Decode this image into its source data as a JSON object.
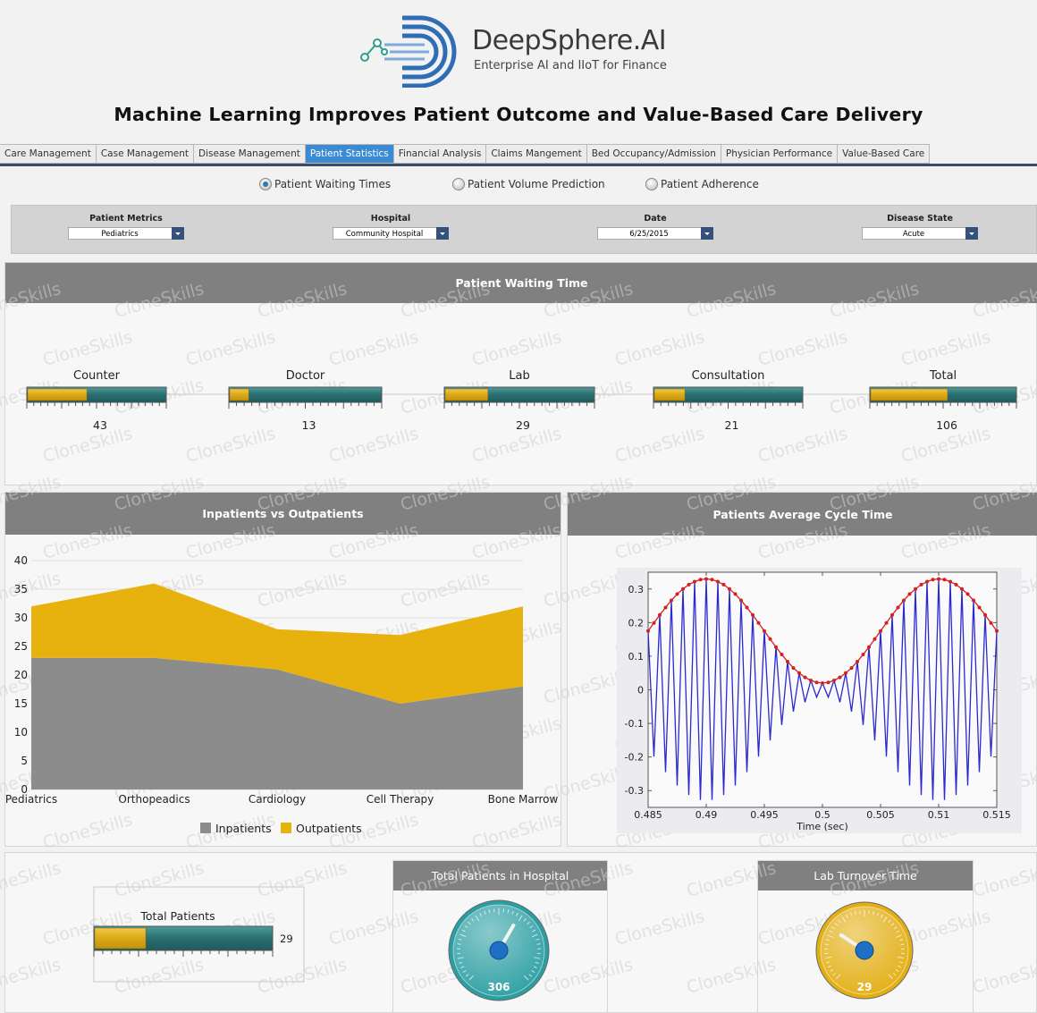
{
  "header": {
    "brand": "DeepSphere.AI",
    "tagline": "Enterprise AI and IIoT for Finance",
    "title": "Machine Learning Improves Patient Outcome and Value-Based Care Delivery"
  },
  "tabs": [
    "Care Management",
    "Case Management",
    "Disease Management",
    "Patient Statistics",
    "Financial Analysis",
    "Claims Mangement",
    "Bed Occupancy/Admission",
    "Physician Performance",
    "Value-Based Care"
  ],
  "active_tab": 3,
  "radio_options": [
    "Patient Waiting Times",
    "Patient Volume Prediction",
    "Patient Adherence"
  ],
  "selected_radio": 0,
  "filters": [
    {
      "label": "Patient Metrics",
      "value": "Pediatrics"
    },
    {
      "label": "Hospital",
      "value": "Community Hospital"
    },
    {
      "label": "Date",
      "value": "6/25/2015"
    },
    {
      "label": "Disease State",
      "value": "Acute"
    }
  ],
  "watermark": "CloneSkills",
  "waiting_time": {
    "title": "Patient Waiting Time",
    "gauges": [
      {
        "label": "Counter",
        "value": 43,
        "lim": [
          0,
          100
        ]
      },
      {
        "label": "Doctor",
        "value": 13,
        "lim": [
          0,
          100
        ]
      },
      {
        "label": "Lab",
        "value": 29,
        "lim": [
          0,
          100
        ]
      },
      {
        "label": "Consultation",
        "value": 21,
        "lim": [
          0,
          100
        ]
      },
      {
        "label": "Total",
        "value": 106,
        "lim": [
          0,
          200
        ]
      }
    ]
  },
  "chart_data": [
    {
      "type": "area",
      "stacked": true,
      "title": "Inpatients vs Outpatients",
      "categories": [
        "Pediatrics",
        "Orthopeadics",
        "Cardiology",
        "Cell Therapy",
        "Bone Marrow"
      ],
      "series": [
        {
          "name": "Inpatients",
          "color": "#8c8c8c",
          "values": [
            23,
            23,
            21,
            15,
            18
          ]
        },
        {
          "name": "Outpatients",
          "color": "#e8b20e",
          "values": [
            9,
            13,
            7,
            12,
            14
          ]
        }
      ],
      "ylim": [
        0,
        40
      ],
      "yticks": [
        0,
        5,
        10,
        15,
        20,
        25,
        30,
        35,
        40
      ],
      "grid": true,
      "legend": "bottom"
    },
    {
      "type": "line",
      "title": "Patients Average Cycle Time",
      "xlabel": "Time (sec)",
      "x": [
        0.485,
        0.4855,
        0.486,
        0.4865,
        0.487,
        0.4875,
        0.488,
        0.4885,
        0.489,
        0.4895,
        0.49,
        0.4905,
        0.491,
        0.4915,
        0.492,
        0.4925,
        0.493,
        0.4935,
        0.494,
        0.4945,
        0.495,
        0.4955,
        0.496,
        0.4965,
        0.497,
        0.4975,
        0.498,
        0.4985,
        0.499,
        0.4995,
        0.5,
        0.5005,
        0.501,
        0.5015,
        0.502,
        0.5025,
        0.503,
        0.5035,
        0.504,
        0.5045,
        0.505,
        0.5055,
        0.506,
        0.5065,
        0.507,
        0.5075,
        0.508,
        0.5085,
        0.509,
        0.5095,
        0.51,
        0.5105,
        0.511,
        0.5115,
        0.512,
        0.5125,
        0.513,
        0.5135,
        0.514,
        0.5145,
        0.515
      ],
      "series": [
        {
          "color": "#2a2ad0",
          "values": [
            0.175,
            -0.199,
            0.223,
            -0.245,
            0.266,
            -0.285,
            0.3,
            -0.313,
            0.322,
            -0.328,
            0.33,
            -0.328,
            0.322,
            -0.313,
            0.3,
            -0.285,
            0.266,
            -0.245,
            0.223,
            -0.199,
            0.175,
            -0.151,
            0.127,
            -0.105,
            0.084,
            -0.065,
            0.05,
            -0.037,
            0.028,
            -0.022,
            0.02,
            -0.022,
            0.028,
            -0.037,
            0.05,
            -0.065,
            0.084,
            -0.105,
            0.127,
            -0.151,
            0.175,
            -0.199,
            0.223,
            -0.245,
            0.266,
            -0.285,
            0.3,
            -0.313,
            0.322,
            -0.328,
            0.33,
            -0.328,
            0.322,
            -0.313,
            0.3,
            -0.285,
            0.266,
            -0.245,
            0.223,
            -0.199,
            0.175
          ]
        },
        {
          "color": "#d42020",
          "markers": true,
          "values": [
            0.175,
            0.199,
            0.223,
            0.245,
            0.266,
            0.285,
            0.3,
            0.313,
            0.322,
            0.328,
            0.33,
            0.328,
            0.322,
            0.313,
            0.3,
            0.285,
            0.266,
            0.245,
            0.223,
            0.199,
            0.175,
            0.151,
            0.127,
            0.105,
            0.084,
            0.065,
            0.05,
            0.037,
            0.028,
            0.022,
            0.02,
            0.022,
            0.028,
            0.037,
            0.05,
            0.065,
            0.084,
            0.105,
            0.127,
            0.151,
            0.175,
            0.199,
            0.223,
            0.245,
            0.266,
            0.285,
            0.3,
            0.313,
            0.322,
            0.328,
            0.33,
            0.328,
            0.322,
            0.313,
            0.3,
            0.285,
            0.266,
            0.245,
            0.223,
            0.199,
            0.175
          ]
        }
      ],
      "xlim": [
        0.485,
        0.515
      ],
      "xticks": [
        0.485,
        0.49,
        0.495,
        0.5,
        0.505,
        0.51,
        0.515
      ],
      "ylim": [
        -0.35,
        0.35
      ],
      "yticks": [
        -0.3,
        -0.2,
        -0.1,
        0,
        0.1,
        0.2,
        0.3
      ]
    }
  ],
  "total_patients_bullet": {
    "label": "Total Patients",
    "value": 29,
    "lim": [
      0,
      100
    ]
  },
  "dials": [
    {
      "title": "Total Patients in Hospital",
      "value": 306,
      "lim": [
        0,
        500
      ],
      "color": "#2b9ea2"
    },
    {
      "title": "Lab Turnover Time",
      "value": 29,
      "lim": [
        0,
        100
      ],
      "color": "#e2ae12"
    }
  ]
}
